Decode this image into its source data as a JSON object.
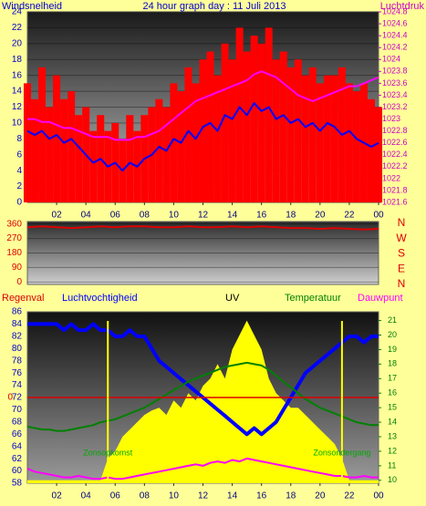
{
  "chart_data": [
    {
      "type": "line",
      "title": "24 hour graph day : 11 Juli 2013",
      "ylabel": "Windsnelheid",
      "y2label": "Luchtdruk",
      "x": [
        0,
        0.5,
        1,
        1.5,
        2,
        2.5,
        3,
        3.5,
        4,
        4.5,
        5,
        5.5,
        6,
        6.5,
        7,
        7.5,
        8,
        8.5,
        9,
        9.5,
        10,
        10.5,
        11,
        11.5,
        12,
        12.5,
        13,
        13.5,
        14,
        14.5,
        15,
        15.5,
        16,
        16.5,
        17,
        17.5,
        18,
        18.5,
        19,
        19.5,
        20,
        20.5,
        21,
        21.5,
        22,
        22.5,
        23,
        23.5,
        24
      ],
      "xlim": [
        0,
        24
      ],
      "xticks": [
        {
          "value": 2,
          "label": "02"
        },
        {
          "value": 4,
          "label": "04"
        },
        {
          "value": 6,
          "label": "06"
        },
        {
          "value": 8,
          "label": "08"
        },
        10,
        12,
        14,
        16,
        18,
        20,
        22,
        {
          "value": 24,
          "label": "00"
        }
      ],
      "ylim": [
        0,
        24
      ],
      "yticks": [
        0,
        2,
        4,
        6,
        8,
        10,
        12,
        14,
        16,
        18,
        20,
        22,
        24
      ],
      "y2lim": [
        1021.6,
        1024.8
      ],
      "y2ticks": [
        1021.6,
        1021.8,
        1022,
        1022.2,
        1022.4,
        1022.6,
        1022.8,
        1023,
        1023.2,
        1023.4,
        1023.6,
        1023.8,
        1024,
        1024.2,
        1024.4,
        1024.6,
        1024.8
      ],
      "grid": true,
      "series": [
        {
          "color": "#ff0000",
          "style": "bar",
          "values": [
            15,
            13,
            17,
            12,
            16,
            13,
            14,
            11,
            12,
            9,
            11,
            9,
            10,
            8,
            11,
            9,
            11,
            12,
            13,
            12,
            15,
            14,
            17,
            15,
            18,
            19,
            16,
            20,
            18,
            22,
            19,
            21,
            20,
            22,
            18,
            19,
            17,
            18,
            16,
            17,
            15,
            16,
            16,
            17,
            15,
            14,
            15,
            13,
            12
          ]
        },
        {
          "color": "#0000ff",
          "style": "line",
          "values": [
            9,
            8.5,
            9,
            8,
            8.5,
            7.5,
            8,
            7,
            6,
            5,
            5.5,
            4.5,
            5,
            4,
            5,
            4.5,
            5.5,
            6,
            7,
            6.5,
            8,
            7.5,
            9,
            8,
            9.5,
            10,
            9,
            11,
            10.5,
            12,
            11,
            12.5,
            11.5,
            12,
            10.5,
            11,
            10,
            10.5,
            9.5,
            10,
            9,
            10,
            9.5,
            8.5,
            9,
            8,
            7.5,
            7,
            7.5
          ]
        },
        {
          "color": "#ff00ff",
          "style": "line",
          "axis": "y2",
          "values": [
            1023.0,
            1023.0,
            1022.95,
            1022.95,
            1022.9,
            1022.85,
            1022.85,
            1022.8,
            1022.75,
            1022.7,
            1022.7,
            1022.7,
            1022.65,
            1022.65,
            1022.65,
            1022.7,
            1022.7,
            1022.75,
            1022.8,
            1022.9,
            1023.0,
            1023.1,
            1023.2,
            1023.3,
            1023.35,
            1023.4,
            1023.45,
            1023.5,
            1023.55,
            1023.6,
            1023.65,
            1023.75,
            1023.8,
            1023.75,
            1023.7,
            1023.6,
            1023.5,
            1023.4,
            1023.35,
            1023.3,
            1023.35,
            1023.4,
            1023.45,
            1023.5,
            1023.55,
            1023.55,
            1023.6,
            1023.65,
            1023.7
          ]
        }
      ]
    },
    {
      "type": "line",
      "compass_labels": [
        "N",
        "W",
        "S",
        "E",
        "N"
      ],
      "x": [
        0,
        1,
        2,
        3,
        4,
        5,
        6,
        7,
        8,
        9,
        10,
        11,
        12,
        13,
        14,
        15,
        16,
        17,
        18,
        19,
        20,
        21,
        22,
        23,
        24
      ],
      "xlim": [
        0,
        24
      ],
      "ylim": [
        -15,
        375
      ],
      "yticks": [
        0,
        90,
        180,
        270,
        360
      ],
      "grid": true,
      "series": [
        {
          "color": "#dd0000",
          "style": "line",
          "values": [
            340,
            345,
            340,
            335,
            340,
            345,
            340,
            345,
            345,
            340,
            340,
            345,
            340,
            340,
            345,
            340,
            345,
            340,
            335,
            335,
            330,
            335,
            330,
            325,
            330
          ]
        }
      ]
    },
    {
      "type": "line",
      "rain_label": "Regenval",
      "rain_ticks": [
        0
      ],
      "x": [
        0,
        0.5,
        1,
        1.5,
        2,
        2.5,
        3,
        3.5,
        4,
        4.5,
        5,
        5.5,
        6,
        6.5,
        7,
        7.5,
        8,
        8.5,
        9,
        9.5,
        10,
        10.5,
        11,
        11.5,
        12,
        12.5,
        13,
        13.5,
        14,
        14.5,
        15,
        15.5,
        16,
        16.5,
        17,
        17.5,
        18,
        18.5,
        19,
        19.5,
        20,
        20.5,
        21,
        21.5,
        22,
        22.5,
        23,
        23.5,
        24
      ],
      "xlim": [
        0,
        24
      ],
      "xticks": [
        {
          "value": 2,
          "label": "02"
        },
        {
          "value": 4,
          "label": "04"
        },
        {
          "value": 6,
          "label": "06"
        },
        {
          "value": 8,
          "label": "08"
        },
        10,
        12,
        14,
        16,
        18,
        20,
        22,
        {
          "value": 24,
          "label": "00"
        }
      ],
      "ylim": [
        58,
        86
      ],
      "yticks": [
        58,
        60,
        62,
        64,
        66,
        68,
        70,
        72,
        74,
        76,
        78,
        80,
        82,
        84,
        86
      ],
      "y2lim": [
        9.8,
        21.6
      ],
      "y2ticks": [
        10,
        11,
        12,
        13,
        14,
        15,
        16,
        17,
        18,
        19,
        20,
        21
      ],
      "annotations": [
        {
          "x": 5.5,
          "text": "Zonsopkomst"
        },
        {
          "x": 21.5,
          "text": "Zonsondergang"
        }
      ],
      "series": [
        {
          "name": "UV",
          "color": "#ffff00",
          "style": "area",
          "axis": "y2",
          "values": [
            10,
            10,
            10,
            10,
            10,
            10,
            10,
            10,
            10,
            10,
            10,
            11.5,
            12,
            13,
            13.5,
            14,
            14.5,
            14.8,
            15,
            14.5,
            15.5,
            15,
            16,
            15.5,
            16.5,
            17,
            18,
            17,
            19,
            20,
            21,
            20,
            19,
            17,
            16,
            15.5,
            15,
            15,
            14.5,
            14,
            13.5,
            13,
            12.5,
            11.5,
            10,
            10,
            10,
            10,
            10
          ]
        },
        {
          "name": "Luchtvochtigheid",
          "color": "#0000ff",
          "style": "line",
          "width": 4,
          "values": [
            84,
            84,
            84,
            84,
            84,
            83,
            84,
            83,
            83,
            84,
            83,
            83,
            82,
            82,
            83,
            82,
            82,
            80,
            78,
            77,
            76,
            75,
            74,
            73,
            72,
            71,
            70,
            69,
            68,
            67,
            66,
            67,
            66,
            67,
            68,
            70,
            72,
            74,
            76,
            77,
            78,
            79,
            80,
            81,
            82,
            82,
            81,
            82,
            82
          ]
        },
        {
          "name": "Temperatuur",
          "color": "#008000",
          "style": "line",
          "axis": "y2",
          "values": [
            13.7,
            13.6,
            13.5,
            13.5,
            13.4,
            13.4,
            13.5,
            13.6,
            13.7,
            13.8,
            14.0,
            14.1,
            14.2,
            14.4,
            14.6,
            14.8,
            15.0,
            15.3,
            15.6,
            15.9,
            16.2,
            16.5,
            16.8,
            17.0,
            17.2,
            17.4,
            17.6,
            17.8,
            17.9,
            18.0,
            18.1,
            18.0,
            17.9,
            17.6,
            17.2,
            16.8,
            16.4,
            16.0,
            15.6,
            15.3,
            15.0,
            14.8,
            14.6,
            14.4,
            14.2,
            14.0,
            13.9,
            13.8,
            13.8
          ]
        },
        {
          "name": "Dauwpunt",
          "color": "#ff00ff",
          "style": "line",
          "axis": "y2",
          "values": [
            10.8,
            10.6,
            10.5,
            10.4,
            10.3,
            10.2,
            10.2,
            10.3,
            10.2,
            10.1,
            10.1,
            10.2,
            10.1,
            10.1,
            10.2,
            10.3,
            10.4,
            10.5,
            10.6,
            10.7,
            10.8,
            10.9,
            11.0,
            11.1,
            11.0,
            11.2,
            11.3,
            11.2,
            11.4,
            11.3,
            11.5,
            11.4,
            11.3,
            11.2,
            11.1,
            11.0,
            10.9,
            10.8,
            10.7,
            10.6,
            10.5,
            10.4,
            10.3,
            10.3,
            10.2,
            10.2,
            10.3,
            10.2,
            10.2
          ]
        }
      ]
    }
  ]
}
